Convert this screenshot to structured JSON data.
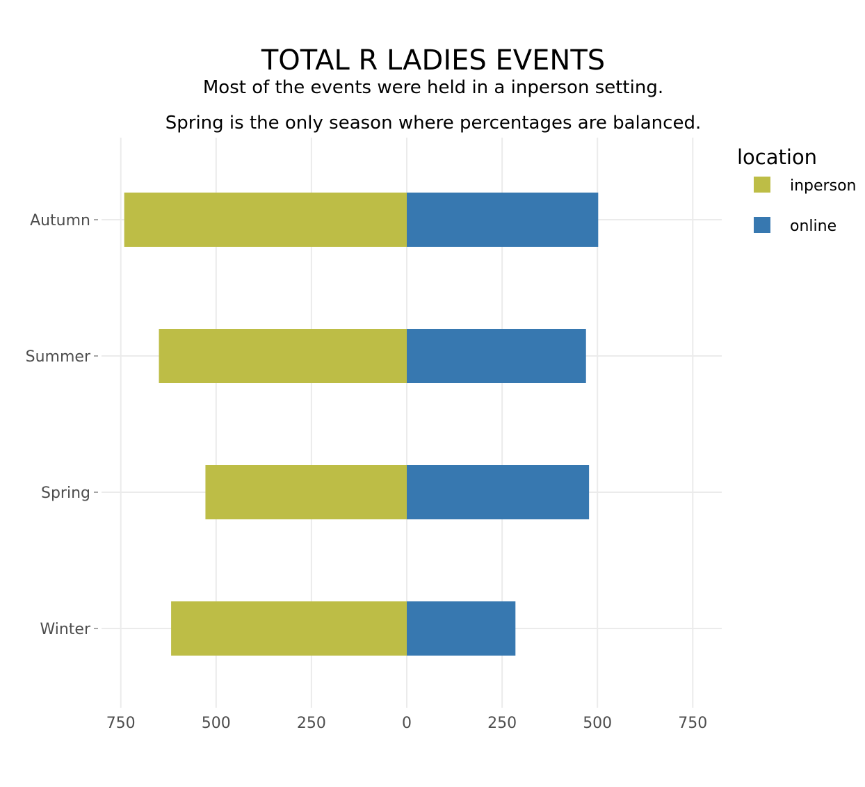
{
  "chart_data": {
    "type": "bar",
    "orientation": "horizontal",
    "layout": "diverging",
    "title": "TOTAL R LADIES EVENTS",
    "subtitle_lines": [
      "Most of the events were held in a inperson setting.",
      "Spring is the only season where percentages are balanced."
    ],
    "categories": [
      "Autumn",
      "Summer",
      "Spring",
      "Winter"
    ],
    "series": [
      {
        "name": "inperson",
        "direction": "left",
        "color": "#bdbd46",
        "values": [
          741,
          650,
          528,
          618
        ]
      },
      {
        "name": "online",
        "direction": "right",
        "color": "#3778b0",
        "values": [
          502,
          470,
          478,
          285
        ]
      }
    ],
    "xlim": [
      -800,
      800
    ],
    "x_ticks": [
      -750,
      -500,
      -250,
      0,
      250,
      500,
      750
    ],
    "x_tick_labels": [
      "750",
      "500",
      "250",
      "0",
      "250",
      "500",
      "750"
    ],
    "xlabel": "",
    "ylabel": "",
    "grid": true,
    "legend": {
      "title": "location",
      "placement": "right"
    }
  }
}
